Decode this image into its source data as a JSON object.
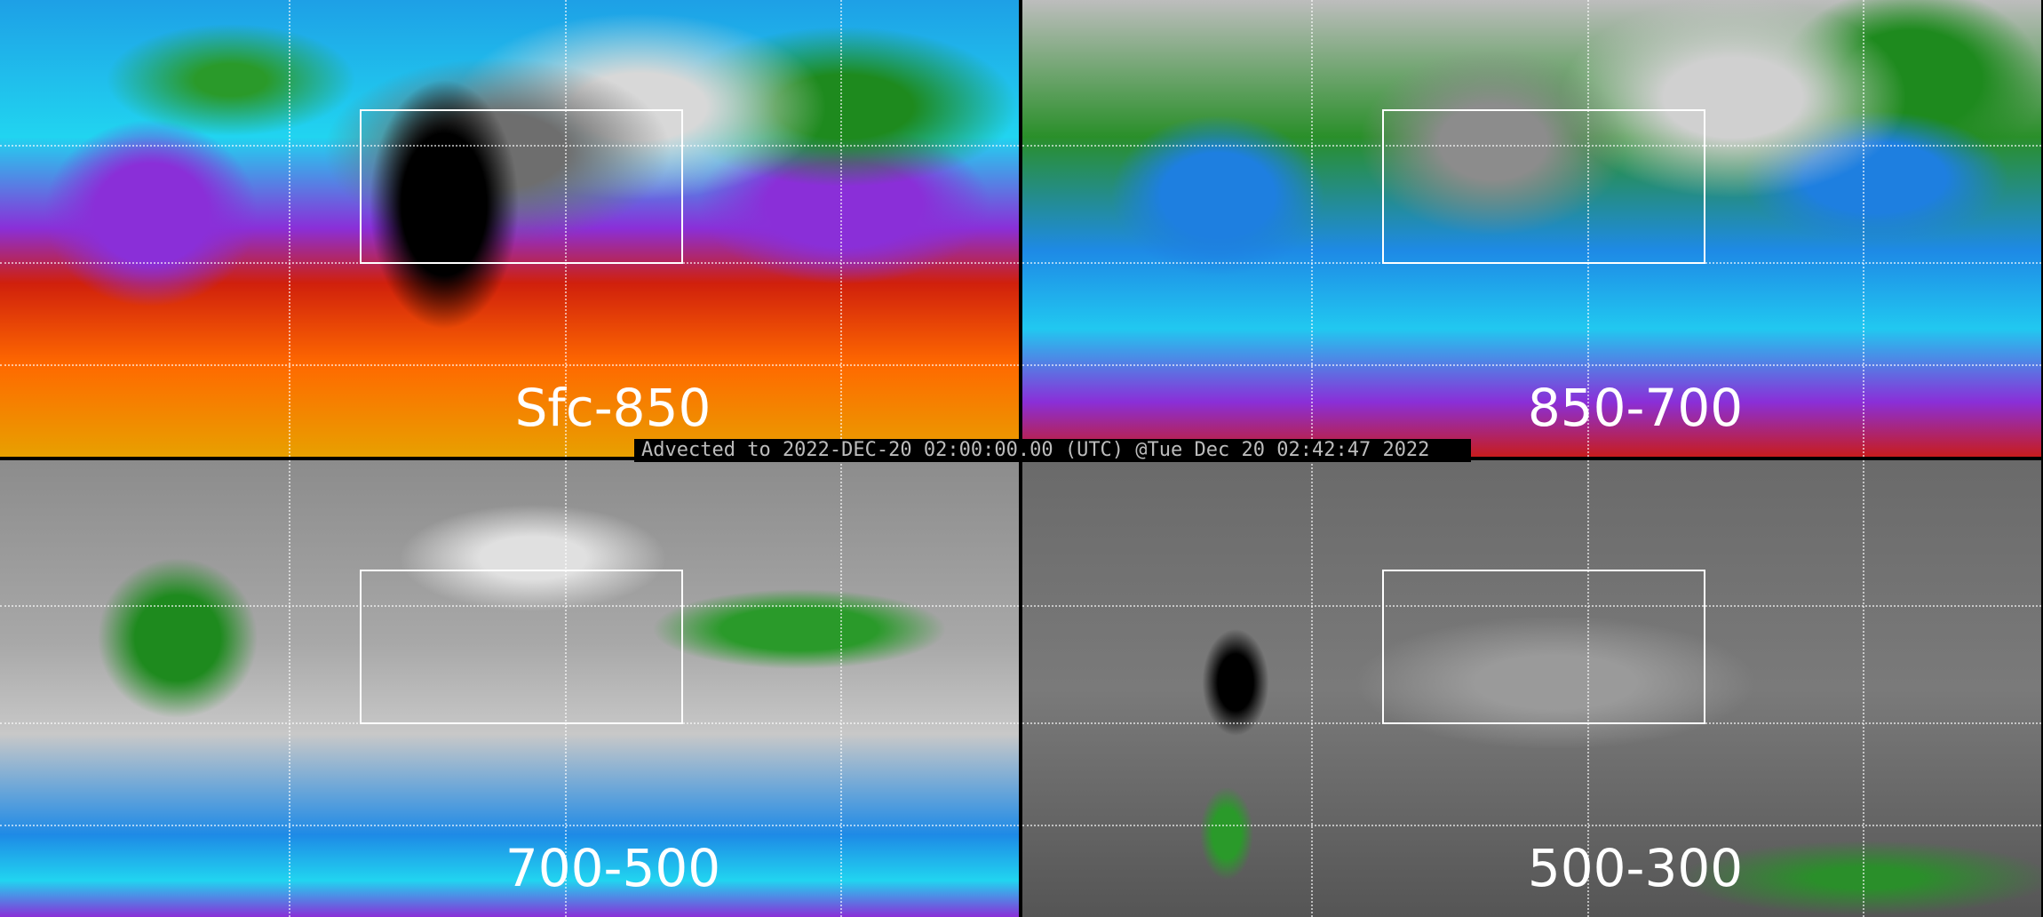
{
  "panels": [
    {
      "label": "Sfc-850"
    },
    {
      "label": "850-700"
    },
    {
      "label": "700-500"
    },
    {
      "label": "500-300"
    }
  ],
  "banner": {
    "text": "Advected to 2022-DEC-20 02:00:00.00 (UTC) @Tue Dec 20 02:42:47 2022"
  },
  "colors": {
    "scale": [
      "#000000",
      "#808080",
      "#ffffff",
      "#1e8a1e",
      "#1e7fe0",
      "#21d4f0",
      "#8a2fd8",
      "#d0200c",
      "#ff6a00",
      "#e8a000"
    ]
  }
}
